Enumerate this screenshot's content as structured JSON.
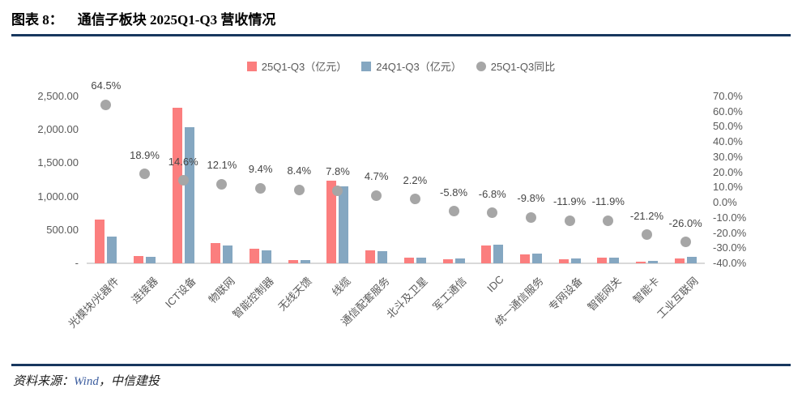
{
  "header": {
    "figure_label": "图表 8：",
    "title": "通信子板块 2025Q1-Q3 营收情况"
  },
  "legend": [
    {
      "label": "25Q1-Q3（亿元）",
      "marker": "square",
      "color": "#FB7E7E"
    },
    {
      "label": "24Q1-Q3（亿元）",
      "marker": "square",
      "color": "#85A7C1"
    },
    {
      "label": "25Q1-Q3同比",
      "marker": "circle",
      "color": "#A6A6A6"
    }
  ],
  "axes": {
    "left_ticks": [
      "2,500.00",
      "2,000.00",
      "1,500.00",
      "1,000.00",
      "500.00",
      "-"
    ],
    "right_ticks": [
      "70.0%",
      "60.0%",
      "50.0%",
      "40.0%",
      "30.0%",
      "20.0%",
      "10.0%",
      "0.0%",
      "-10.0%",
      "-20.0%",
      "-30.0%",
      "-40.0%"
    ]
  },
  "chart_data": {
    "type": "bar",
    "title": "通信子板块 2025Q1-Q3 营收情况",
    "categories": [
      "光模块/光器件",
      "连接器",
      "ICT设备",
      "物联网",
      "智能控制器",
      "无线天馈",
      "线缆",
      "通信配套服务",
      "北斗及卫星",
      "军工通信",
      "IDC",
      "统一通信服务",
      "专网设备",
      "智能网关",
      "智能卡",
      "工业互联网"
    ],
    "series": [
      {
        "name": "25Q1-Q3（亿元）",
        "type": "bar",
        "axis": "left",
        "color": "#FB7E7E",
        "values": [
          650,
          110,
          2330,
          300,
          215,
          54,
          1240,
          192,
          88,
          66,
          261,
          133,
          64,
          80,
          29,
          75
        ]
      },
      {
        "name": "24Q1-Q3（亿元）",
        "type": "bar",
        "axis": "left",
        "color": "#85A7C1",
        "values": [
          395,
          92,
          2033,
          268,
          196,
          50,
          1150,
          183,
          86,
          70,
          280,
          148,
          73,
          91,
          37,
          101
        ]
      },
      {
        "name": "25Q1-Q3同比",
        "type": "scatter",
        "axis": "right",
        "color": "#A6A6A6",
        "values": [
          64.5,
          18.9,
          14.6,
          12.1,
          9.4,
          8.4,
          7.8,
          4.7,
          2.2,
          -5.8,
          -6.8,
          -9.8,
          -11.9,
          -11.9,
          -21.2,
          -26.0
        ]
      }
    ],
    "point_labels": [
      "64.5%",
      "18.9%",
      "14.6%",
      "12.1%",
      "9.4%",
      "8.4%",
      "7.8%",
      "4.7%",
      "2.2%",
      "-5.8%",
      "-6.8%",
      "-9.8%",
      "-11.9%",
      "-11.9%",
      "-21.2%",
      "-26.0%"
    ],
    "left_axis": {
      "min": 0,
      "max": 2500
    },
    "right_axis": {
      "min": -40,
      "max": 70
    },
    "grid": false,
    "legend_position": "top"
  },
  "footer": {
    "prefix": "资料来源：",
    "source": "Wind",
    "suffix": "，中信建投"
  }
}
